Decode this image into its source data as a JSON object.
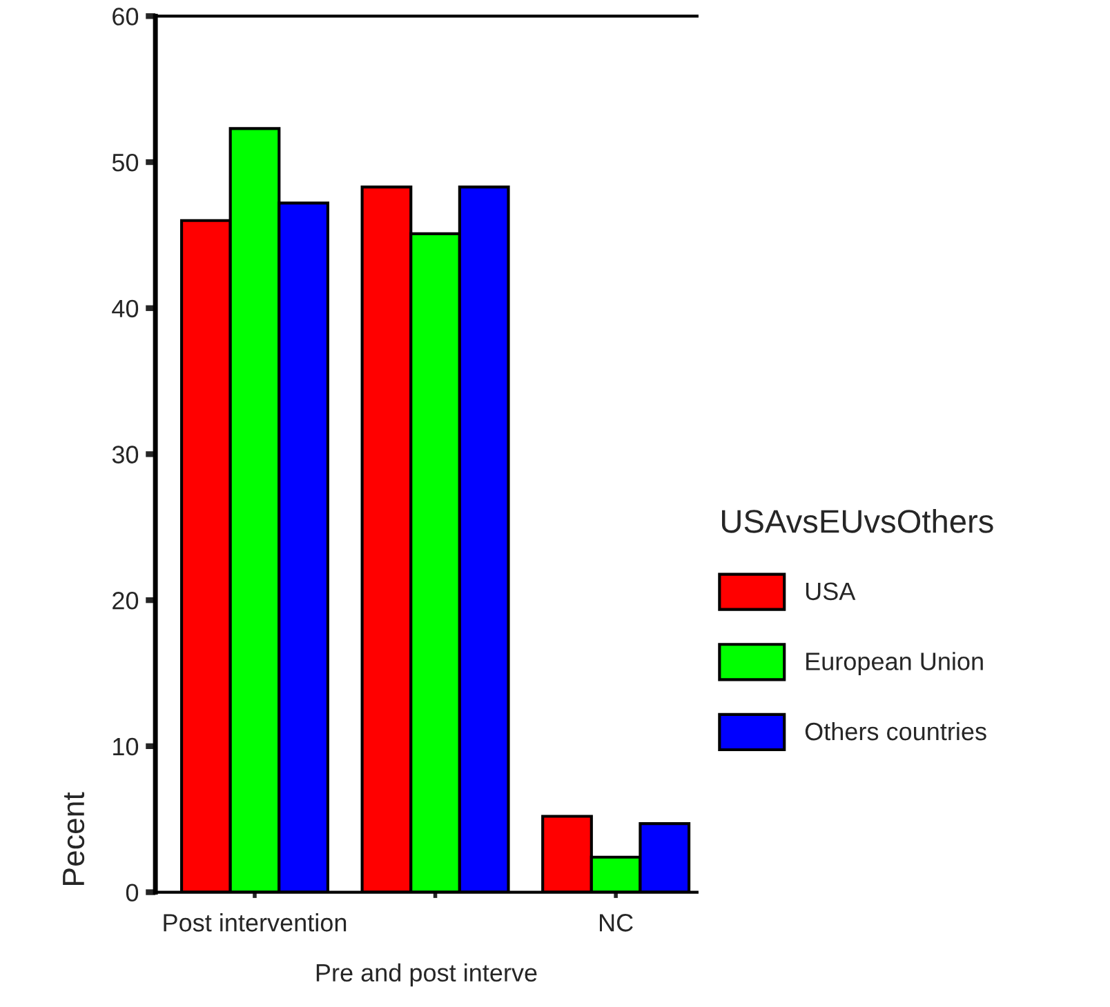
{
  "chart_data": {
    "type": "bar",
    "xlabel": "Pre and post interve",
    "ylabel": "Pecent",
    "legend_title": "USAvsEUvsOthers",
    "categories": [
      "Post intervention",
      null,
      "NC"
    ],
    "series": [
      {
        "name": "USA",
        "color": "#ff0000",
        "values": [
          46.0,
          48.3,
          5.2
        ]
      },
      {
        "name": "European Union",
        "color": "#00ff00",
        "values": [
          52.3,
          45.1,
          2.4
        ]
      },
      {
        "name": "Others countries",
        "color": "#0000ff",
        "values": [
          47.2,
          48.3,
          4.7
        ]
      }
    ],
    "ylim": [
      0,
      60
    ],
    "yticks": [
      0,
      10,
      20,
      30,
      40,
      50,
      60
    ],
    "grid": false,
    "legend": "right"
  }
}
